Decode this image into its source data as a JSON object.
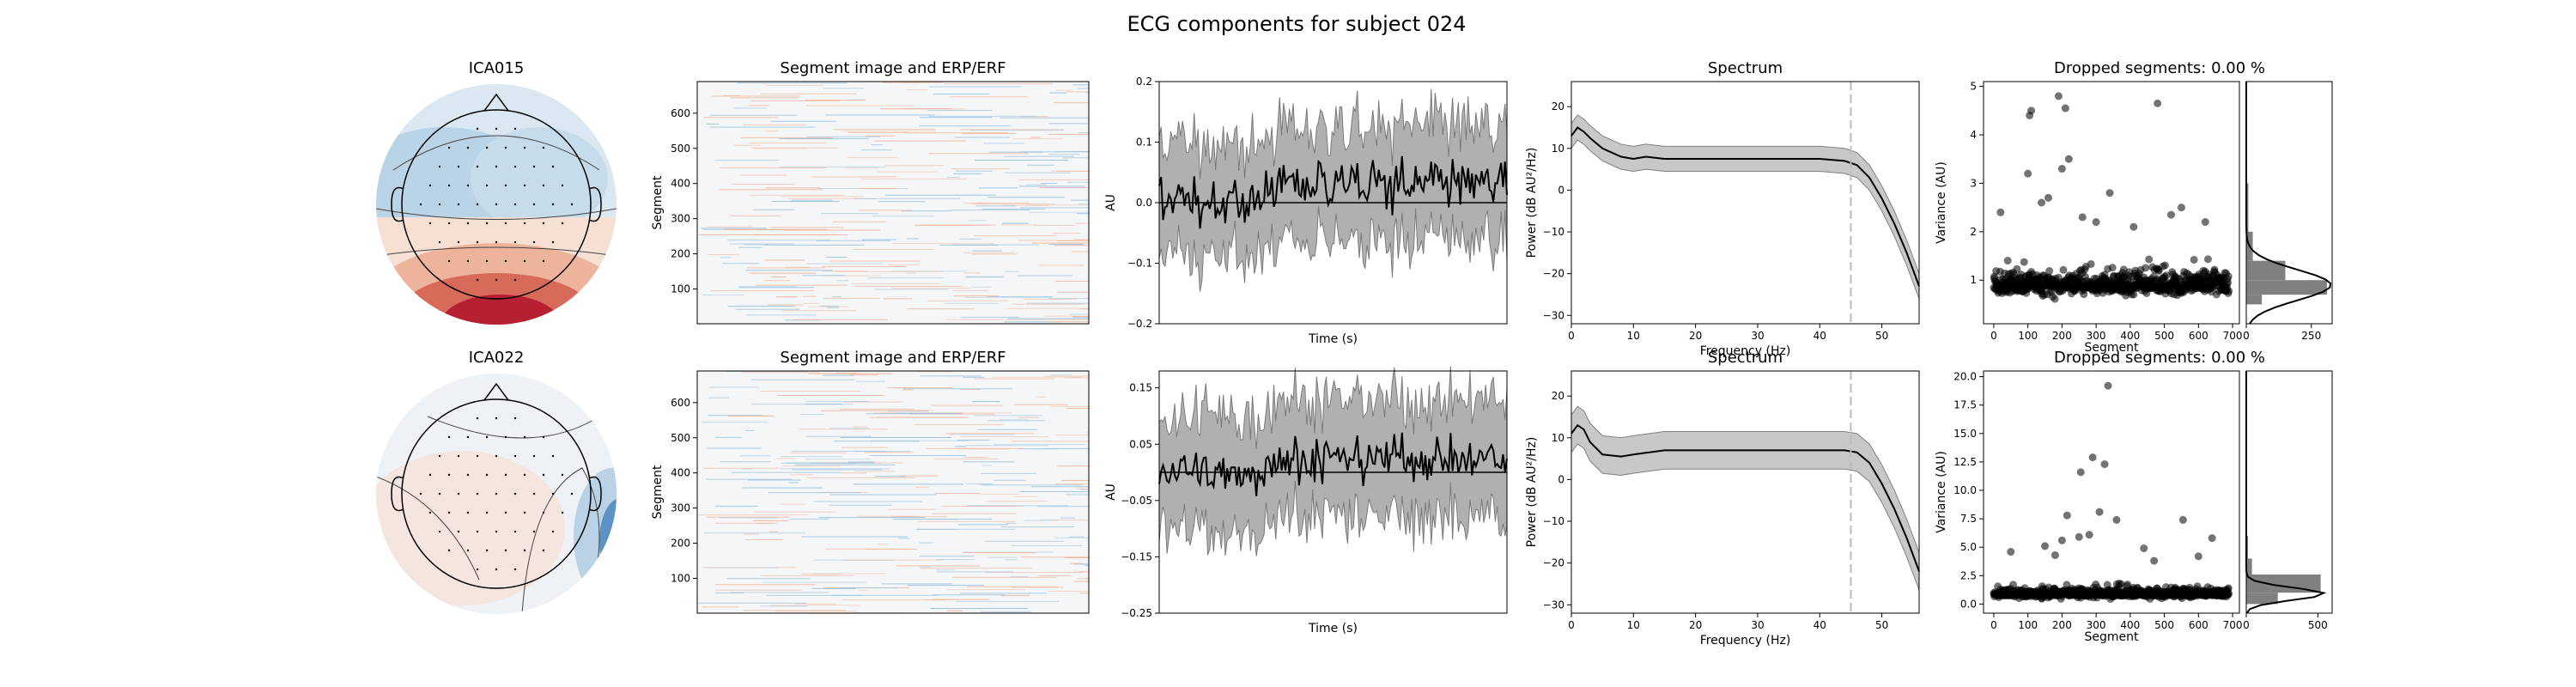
{
  "figure": {
    "title": "ECG components for subject 024"
  },
  "chart_data": [
    {
      "type": "heatmap",
      "panel": "topomap",
      "title": "ICA015",
      "description_colors": {
        "positive": "#b2182b",
        "negative": "#2166ac",
        "mid": "#f7f7f7"
      }
    },
    {
      "type": "heatmap",
      "panel": "segment-image",
      "title": "Segment image and ERP/ERF",
      "ylabel": "Segment",
      "yticks": [
        100,
        200,
        300,
        400,
        500,
        600
      ],
      "ylim": [
        1,
        690
      ]
    },
    {
      "type": "line",
      "panel": "erp",
      "xlabel": "Time (s)",
      "ylabel": "AU",
      "yticks": [
        -0.2,
        -0.1,
        0.0,
        0.1,
        0.2
      ],
      "ytick_labels": [
        "−0.2",
        "−0.1",
        "0.0",
        "0.1",
        "0.2"
      ],
      "ylim": [
        -0.2,
        0.2
      ],
      "series": [
        {
          "role": "mean",
          "color": "#000000",
          "baseline": 0.0,
          "amplitude": 0.035,
          "offset_late": 0.03
        },
        {
          "role": "band",
          "color": "#808080",
          "amplitude": 0.11
        }
      ]
    },
    {
      "type": "line",
      "panel": "spectrum",
      "title": "Spectrum",
      "xlabel": "Frequency (Hz)",
      "ylabel": "Power (dB AU²/Hz)",
      "xticks": [
        0,
        10,
        20,
        30,
        40,
        50
      ],
      "yticks": [
        -30,
        -20,
        -10,
        0,
        10,
        20
      ],
      "ytick_labels": [
        "−30",
        "−20",
        "−10",
        "0",
        "10",
        "20"
      ],
      "xlim": [
        0,
        56
      ],
      "ylim": [
        -32,
        26
      ],
      "vline": 45,
      "x": [
        0,
        1,
        2,
        3,
        5,
        8,
        10,
        12,
        15,
        20,
        25,
        30,
        35,
        40,
        44,
        46,
        48,
        50,
        52,
        54,
        56
      ],
      "y": [
        13,
        15,
        14,
        12.5,
        10,
        8,
        7.5,
        8,
        7.5,
        7.5,
        7.5,
        7.5,
        7.5,
        7.5,
        7,
        6,
        3,
        -2,
        -8,
        -15,
        -23
      ],
      "band_halfwidth": 3
    },
    {
      "type": "scatter",
      "panel": "variance",
      "title": "Dropped segments: 0.00 %",
      "xlabel": "Segment",
      "ylabel": "Variance (AU)",
      "xticks": [
        0,
        100,
        200,
        300,
        400,
        500,
        600,
        700
      ],
      "yticks": [
        1,
        2,
        3,
        4,
        5
      ],
      "xlim": [
        -30,
        720
      ],
      "ylim": [
        0.1,
        5.1
      ],
      "outliers": [
        [
          100,
          3.2
        ],
        [
          105,
          4.4
        ],
        [
          110,
          4.5
        ],
        [
          190,
          4.8
        ],
        [
          210,
          4.55
        ],
        [
          220,
          3.5
        ],
        [
          480,
          4.65
        ],
        [
          140,
          2.6
        ],
        [
          160,
          2.7
        ],
        [
          340,
          2.8
        ],
        [
          200,
          3.3
        ],
        [
          20,
          2.4
        ],
        [
          260,
          2.3
        ],
        [
          300,
          2.2
        ],
        [
          550,
          2.5
        ],
        [
          520,
          2.35
        ],
        [
          620,
          2.2
        ],
        [
          410,
          2.1
        ]
      ],
      "bulk_center": 0.9,
      "bulk_spread": 0.35,
      "hist": {
        "xticks": [
          0,
          250
        ],
        "xlim": [
          0,
          330
        ],
        "bins": [
          [
            0.5,
            0.7,
            60
          ],
          [
            0.7,
            1.0,
            310
          ],
          [
            1.0,
            1.4,
            150
          ],
          [
            1.4,
            2.0,
            25
          ],
          [
            2.0,
            3.0,
            8
          ]
        ]
      }
    },
    {
      "type": "heatmap",
      "panel": "topomap",
      "title": "ICA022"
    },
    {
      "type": "heatmap",
      "panel": "segment-image",
      "title": "Segment image and ERP/ERF",
      "ylabel": "Segment",
      "yticks": [
        100,
        200,
        300,
        400,
        500,
        600
      ],
      "ylim": [
        1,
        690
      ]
    },
    {
      "type": "line",
      "panel": "erp",
      "xlabel": "Time (s)",
      "ylabel": "AU",
      "yticks": [
        -0.25,
        -0.15,
        -0.05,
        0.05,
        0.15
      ],
      "ytick_labels": [
        "−0.25",
        "−0.15",
        "−0.05",
        "0.05",
        "0.15"
      ],
      "ylim": [
        -0.25,
        0.18
      ],
      "series": [
        {
          "role": "mean",
          "color": "#000000",
          "baseline": 0.0,
          "amplitude": 0.035,
          "offset_late": 0.025
        },
        {
          "role": "band",
          "color": "#808080",
          "amplitude": 0.12
        }
      ]
    },
    {
      "type": "line",
      "panel": "spectrum",
      "title": "Spectrum",
      "xlabel": "Frequency (Hz)",
      "ylabel": "Power (dB AU²/Hz)",
      "xticks": [
        0,
        10,
        20,
        30,
        40,
        50
      ],
      "yticks": [
        -30,
        -20,
        -10,
        0,
        10,
        20
      ],
      "ytick_labels": [
        "−30",
        "−20",
        "−10",
        "0",
        "10",
        "20"
      ],
      "xlim": [
        0,
        56
      ],
      "ylim": [
        -32,
        26
      ],
      "vline": 45,
      "x": [
        0,
        1,
        2,
        3,
        5,
        8,
        10,
        15,
        20,
        25,
        30,
        35,
        40,
        44,
        46,
        48,
        50,
        52,
        54,
        56
      ],
      "y": [
        11,
        13,
        12,
        9,
        6,
        5.5,
        6,
        7,
        7,
        7,
        7,
        7,
        7,
        7,
        6.5,
        4,
        -1,
        -7,
        -14,
        -22
      ],
      "band_halfwidth": 4.5
    },
    {
      "type": "scatter",
      "panel": "variance",
      "title": "Dropped segments: 0.00 %",
      "xlabel": "Segment",
      "ylabel": "Variance (AU)",
      "xticks": [
        0,
        100,
        200,
        300,
        400,
        500,
        600,
        700
      ],
      "yticks": [
        0.0,
        2.5,
        5.0,
        7.5,
        10.0,
        12.5,
        15.0,
        17.5,
        20.0
      ],
      "ytick_labels": [
        "0.0",
        "2.5",
        "5.0",
        "7.5",
        "10.0",
        "12.5",
        "15.0",
        "17.5",
        "20.0"
      ],
      "xlim": [
        -30,
        720
      ],
      "ylim": [
        -0.8,
        20.5
      ],
      "outliers": [
        [
          335,
          19.2
        ],
        [
          290,
          12.9
        ],
        [
          325,
          12.3
        ],
        [
          255,
          11.6
        ],
        [
          215,
          7.8
        ],
        [
          200,
          5.6
        ],
        [
          310,
          8.1
        ],
        [
          360,
          7.4
        ],
        [
          250,
          5.9
        ],
        [
          280,
          6.1
        ],
        [
          555,
          7.4
        ],
        [
          640,
          5.8
        ],
        [
          50,
          4.6
        ],
        [
          150,
          5.1
        ],
        [
          440,
          4.9
        ],
        [
          470,
          3.8
        ],
        [
          180,
          4.3
        ],
        [
          600,
          4.2
        ]
      ],
      "bulk_center": 0.9,
      "bulk_spread": 0.6,
      "hist": {
        "xticks": [
          0,
          500
        ],
        "xlim": [
          0,
          600
        ],
        "bins": [
          [
            0.0,
            1.0,
            220
          ],
          [
            1.0,
            2.6,
            520
          ],
          [
            2.6,
            4.0,
            40
          ],
          [
            4.0,
            6.0,
            12
          ]
        ]
      }
    }
  ]
}
